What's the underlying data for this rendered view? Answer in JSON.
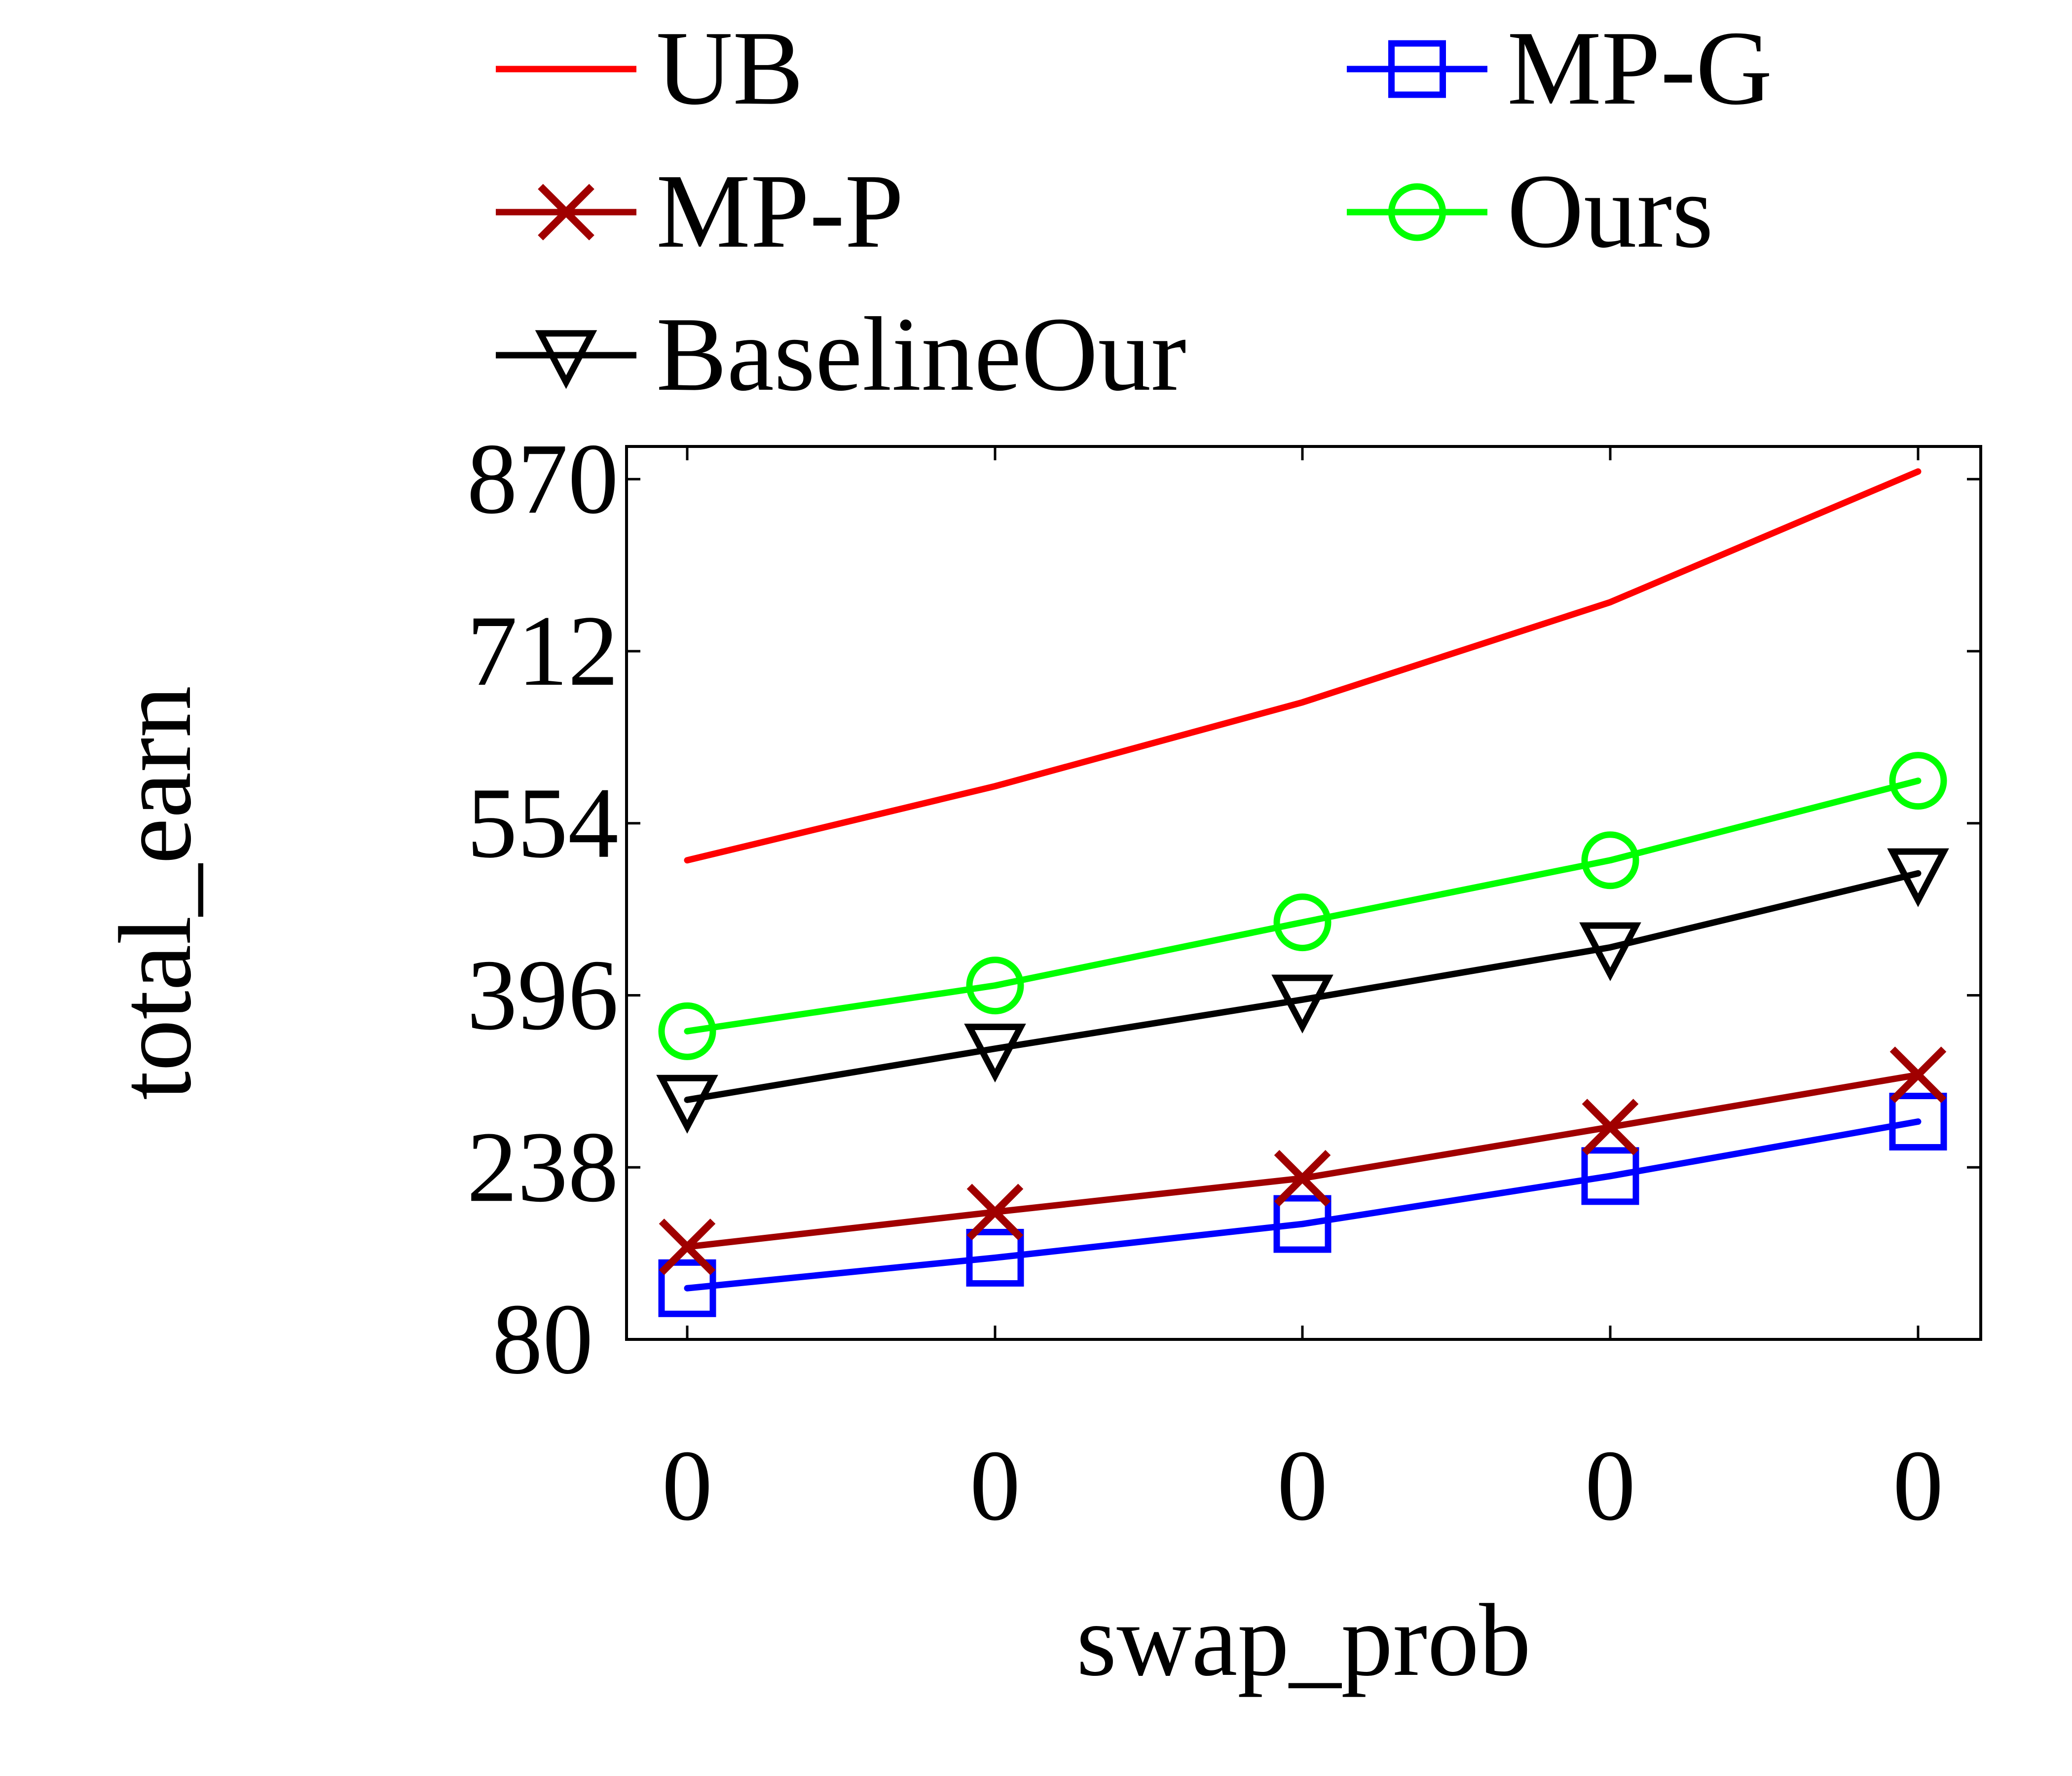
{
  "chart_data": {
    "type": "line",
    "title": "",
    "xlabel": "swap_prob",
    "ylabel": "total_earn",
    "x_tick_labels": [
      "0",
      "0",
      "0",
      "0",
      "0"
    ],
    "y_ticks": [
      80,
      238,
      396,
      554,
      712,
      870
    ],
    "ylim": [
      80,
      900
    ],
    "grid": false,
    "legend_position": "top",
    "series": [
      {
        "name": "UB",
        "color": "#ff0000",
        "marker": "none",
        "values": [
          520,
          588,
          665,
          757,
          877
        ]
      },
      {
        "name": "MP-G",
        "color": "#0000ff",
        "marker": "square",
        "values": [
          127,
          155,
          186,
          230,
          280
        ]
      },
      {
        "name": "MP-P",
        "color": "#a00000",
        "marker": "x",
        "values": [
          165,
          197,
          228,
          275,
          323
        ]
      },
      {
        "name": "Ours",
        "color": "#00ff00",
        "marker": "circle",
        "values": [
          363,
          405,
          463,
          520,
          593
        ]
      },
      {
        "name": "BaselineOur",
        "color": "#000000",
        "marker": "triangle-down",
        "values": [
          300,
          347,
          392,
          440,
          508
        ]
      }
    ]
  }
}
